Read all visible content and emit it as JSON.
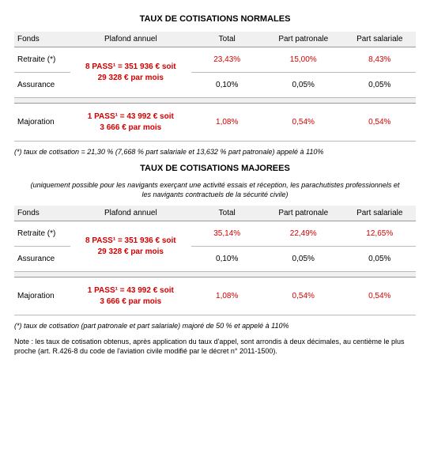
{
  "table1": {
    "title": "TAUX DE COTISATIONS NORMALES",
    "headers": {
      "fonds": "Fonds",
      "plafond": "Plafond annuel",
      "total": "Total",
      "patronale": "Part patronale",
      "salariale": "Part salariale"
    },
    "rows": {
      "retraite": {
        "label": "Retraite (*)",
        "plafond_l1": "8 PASS¹ = 351 936 € soit",
        "plafond_l2": "29 328 € par mois",
        "total": "23,43%",
        "patronale": "15,00%",
        "salariale": "8,43%"
      },
      "assurance": {
        "label": "Assurance",
        "total": "0,10%",
        "patronale": "0,05%",
        "salariale": "0,05%"
      },
      "majoration": {
        "label": "Majoration",
        "plafond_l1": "1 PASS¹ = 43 992 € soit",
        "plafond_l2": "3 666 € par mois",
        "total": "1,08%",
        "patronale": "0,54%",
        "salariale": "0,54%"
      }
    },
    "footnote": "(*) taux de cotisation = 21,30 % (7,668 % part salariale et 13,632 % part patronale) appelé à 110%"
  },
  "table2": {
    "title": "TAUX DE COTISATIONS MAJOREES",
    "subtitle": "(uniquement possible pour les navigants exerçant une activité essais et réception, les parachutistes professionnels et les navigants contractuels de la sécurité civile)",
    "headers": {
      "fonds": "Fonds",
      "plafond": "Plafond annuel",
      "total": "Total",
      "patronale": "Part patronale",
      "salariale": "Part salariale"
    },
    "rows": {
      "retraite": {
        "label": "Retraite (*)",
        "plafond_l1": "8 PASS¹ = 351 936 € soit",
        "plafond_l2": "29 328 € par mois",
        "total": "35,14%",
        "patronale": "22,49%",
        "salariale": "12,65%"
      },
      "assurance": {
        "label": "Assurance",
        "total": "0,10%",
        "patronale": "0,05%",
        "salariale": "0,05%"
      },
      "majoration": {
        "label": "Majoration",
        "plafond_l1": "1 PASS¹ = 43 992 € soit",
        "plafond_l2": "3 666 € par mois",
        "total": "1,08%",
        "patronale": "0,54%",
        "salariale": "0,54%"
      }
    },
    "footnote": "(*) taux de cotisation (part patronale et part salariale) majoré de 50 % et appelé à 110%"
  },
  "note": "Note : les taux de cotisation obtenus, après application du taux d'appel, sont arrondis à deux décimales, au centième le plus proche (art. R.426-8 du code de l'aviation civile modifié par le décret n° 2011-1500)."
}
